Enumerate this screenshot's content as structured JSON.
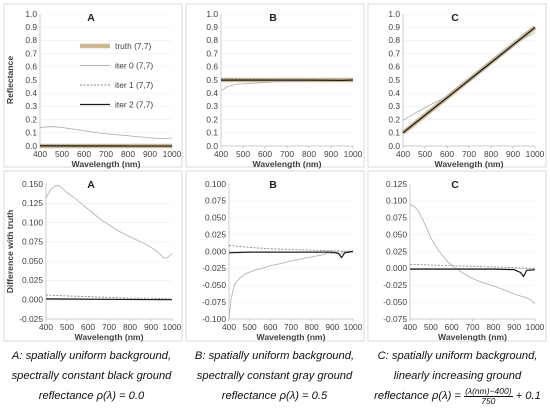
{
  "chart_data": [
    {
      "type": "line",
      "panel": "A",
      "title": "A",
      "xlabel": "Wavelength (nm)",
      "ylabel": "Reflectance",
      "xlim": [
        400,
        1000
      ],
      "ylim": [
        0,
        1
      ],
      "xticks": [
        "400",
        "500",
        "600",
        "700",
        "800",
        "900",
        "1000"
      ],
      "yticks": [
        "0.0",
        "0.1",
        "0.2",
        "0.3",
        "0.4",
        "0.5",
        "0.6",
        "0.7",
        "0.8",
        "0.9",
        "1.0"
      ],
      "legend": {
        "position": "right",
        "entries": [
          "truth (7,7)",
          "iter 0 (7,7)",
          "iter 1 (7,7)",
          "iter 2 (7,7)"
        ]
      },
      "series": [
        {
          "name": "truth (7,7)",
          "x": [
            400,
            1000
          ],
          "y": [
            0.0,
            0.0
          ]
        },
        {
          "name": "iter 0 (7,7)",
          "x": [
            400,
            450,
            500,
            550,
            600,
            650,
            700,
            750,
            800,
            850,
            900,
            950,
            1000
          ],
          "y": [
            0.14,
            0.148,
            0.14,
            0.128,
            0.115,
            0.103,
            0.093,
            0.085,
            0.078,
            0.07,
            0.062,
            0.056,
            0.06
          ]
        },
        {
          "name": "iter 1 (7,7)",
          "x": [
            400,
            500,
            600,
            700,
            800,
            900,
            1000
          ],
          "y": [
            0.006,
            0.005,
            0.004,
            0.003,
            0.002,
            0.002,
            0.001
          ]
        },
        {
          "name": "iter 2 (7,7)",
          "x": [
            400,
            1000
          ],
          "y": [
            0.001,
            0.0
          ]
        }
      ]
    },
    {
      "type": "line",
      "panel": "B",
      "title": "B",
      "xlabel": "Wavelength (nm)",
      "ylabel": "",
      "xlim": [
        400,
        1000
      ],
      "ylim": [
        0,
        1
      ],
      "xticks": [
        "400",
        "500",
        "600",
        "700",
        "800",
        "900",
        "1000"
      ],
      "yticks": [
        "0.0",
        "0.1",
        "0.2",
        "0.3",
        "0.4",
        "0.5",
        "0.6",
        "0.7",
        "0.8",
        "0.9",
        "1.0"
      ],
      "series": [
        {
          "name": "truth (7,7)",
          "x": [
            400,
            1000
          ],
          "y": [
            0.5,
            0.5
          ]
        },
        {
          "name": "iter 0 (7,7)",
          "x": [
            400,
            430,
            470,
            520,
            600,
            700,
            800,
            880,
            920,
            950,
            1000
          ],
          "y": [
            0.42,
            0.45,
            0.468,
            0.473,
            0.482,
            0.49,
            0.497,
            0.5,
            0.498,
            0.5,
            0.501
          ]
        },
        {
          "name": "iter 1 (7,7)",
          "x": [
            400,
            600,
            800,
            950,
            1000
          ],
          "y": [
            0.51,
            0.503,
            0.502,
            0.5,
            0.5
          ]
        },
        {
          "name": "iter 2 (7,7)",
          "x": [
            400,
            600,
            800,
            950,
            1000
          ],
          "y": [
            0.499,
            0.499,
            0.499,
            0.497,
            0.5
          ]
        }
      ]
    },
    {
      "type": "line",
      "panel": "C",
      "title": "C",
      "xlabel": "Wavelength (nm)",
      "ylabel": "",
      "xlim": [
        400,
        1000
      ],
      "ylim": [
        0,
        1
      ],
      "xticks": [
        "400",
        "500",
        "600",
        "700",
        "800",
        "900",
        "1000"
      ],
      "yticks": [
        "0.0",
        "0.1",
        "0.2",
        "0.3",
        "0.4",
        "0.5",
        "0.6",
        "0.7",
        "0.8",
        "0.9",
        "1.0"
      ],
      "series": [
        {
          "name": "truth (7,7)",
          "x": [
            400,
            1000
          ],
          "y": [
            0.1,
            0.9
          ]
        },
        {
          "name": "iter 0 (7,7)",
          "x": [
            400,
            450,
            500,
            550,
            600,
            700,
            800,
            900,
            950,
            1000
          ],
          "y": [
            0.195,
            0.245,
            0.29,
            0.335,
            0.37,
            0.49,
            0.62,
            0.755,
            0.815,
            0.86
          ]
        },
        {
          "name": "iter 1 (7,7)",
          "x": [
            400,
            600,
            800,
            1000
          ],
          "y": [
            0.105,
            0.37,
            0.635,
            0.9
          ]
        },
        {
          "name": "iter 2 (7,7)",
          "x": [
            400,
            600,
            800,
            1000
          ],
          "y": [
            0.1,
            0.365,
            0.632,
            0.898
          ]
        }
      ]
    },
    {
      "type": "line",
      "panel": "A",
      "title": "A",
      "xlabel": "Wavelength (nm)",
      "ylabel": "Difference with truth",
      "xlim": [
        400,
        1000
      ],
      "ylim": [
        -0.025,
        0.15
      ],
      "xticks": [
        "400",
        "500",
        "600",
        "700",
        "800",
        "900",
        "1000"
      ],
      "yticks": [
        "-0.025",
        "0.000",
        "0.025",
        "0.050",
        "0.075",
        "0.100",
        "0.125",
        "0.150"
      ],
      "series": [
        {
          "name": "iter 0 (7,7)",
          "x": [
            400,
            420,
            440,
            460,
            480,
            500,
            540,
            580,
            620,
            660,
            700,
            740,
            780,
            820,
            860,
            900,
            940,
            960,
            980,
            1000
          ],
          "y": [
            0.132,
            0.142,
            0.147,
            0.148,
            0.144,
            0.139,
            0.131,
            0.122,
            0.113,
            0.104,
            0.097,
            0.09,
            0.084,
            0.079,
            0.074,
            0.068,
            0.06,
            0.054,
            0.055,
            0.06
          ]
        },
        {
          "name": "iter 1 (7,7)",
          "x": [
            400,
            500,
            600,
            700,
            800,
            900,
            1000
          ],
          "y": [
            0.006,
            0.005,
            0.004,
            0.003,
            0.002,
            0.002,
            0.001
          ]
        },
        {
          "name": "iter 2 (7,7)",
          "x": [
            400,
            1000
          ],
          "y": [
            0.001,
            0.0
          ]
        }
      ]
    },
    {
      "type": "line",
      "panel": "B",
      "title": "B",
      "xlabel": "Wavelength (nm)",
      "ylabel": "",
      "xlim": [
        400,
        1000
      ],
      "ylim": [
        -0.1,
        0.1
      ],
      "xticks": [
        "400",
        "500",
        "600",
        "700",
        "800",
        "900",
        "1000"
      ],
      "yticks": [
        "-0.100",
        "-0.075",
        "-0.050",
        "-0.025",
        "0.000",
        "0.025",
        "0.050",
        "0.075",
        "0.100"
      ],
      "series": [
        {
          "name": "iter 0 (7,7)",
          "x": [
            400,
            410,
            425,
            450,
            480,
            520,
            560,
            600,
            650,
            700,
            750,
            800,
            850,
            880,
            900,
            920,
            940,
            960,
            1000
          ],
          "y": [
            -0.1,
            -0.07,
            -0.05,
            -0.04,
            -0.033,
            -0.028,
            -0.025,
            -0.021,
            -0.018,
            -0.014,
            -0.011,
            -0.008,
            -0.005,
            -0.002,
            -0.003,
            -0.001,
            -0.004,
            0.0,
            0.001
          ]
        },
        {
          "name": "iter 1 (7,7)",
          "x": [
            400,
            500,
            600,
            700,
            800,
            900,
            1000
          ],
          "y": [
            0.009,
            0.006,
            0.004,
            0.003,
            0.002,
            0.001,
            0.0
          ]
        },
        {
          "name": "iter 2 (7,7)",
          "x": [
            400,
            500,
            700,
            900,
            930,
            945,
            960,
            1000
          ],
          "y": [
            -0.002,
            -0.001,
            -0.001,
            -0.001,
            -0.003,
            -0.009,
            -0.002,
            0.0
          ]
        }
      ]
    },
    {
      "type": "line",
      "panel": "C",
      "title": "C",
      "xlabel": "Wavelength (nm)",
      "ylabel": "",
      "xlim": [
        400,
        1000
      ],
      "ylim": [
        -0.075,
        0.125
      ],
      "xticks": [
        "400",
        "500",
        "600",
        "700",
        "800",
        "900",
        "1000"
      ],
      "yticks": [
        "-0.075",
        "-0.050",
        "-0.025",
        "0.000",
        "0.025",
        "0.050",
        "0.075",
        "0.100",
        "0.125"
      ],
      "series": [
        {
          "name": "iter 0 (7,7)",
          "x": [
            400,
            420,
            440,
            460,
            480,
            500,
            540,
            580,
            620,
            660,
            700,
            740,
            780,
            820,
            860,
            900,
            940,
            970,
            1000
          ],
          "y": [
            0.095,
            0.092,
            0.085,
            0.073,
            0.06,
            0.045,
            0.025,
            0.01,
            0.0,
            -0.008,
            -0.015,
            -0.02,
            -0.024,
            -0.028,
            -0.033,
            -0.038,
            -0.042,
            -0.045,
            -0.052
          ]
        },
        {
          "name": "iter 1 (7,7)",
          "x": [
            400,
            500,
            600,
            700,
            800,
            900,
            1000
          ],
          "y": [
            0.006,
            0.005,
            0.004,
            0.003,
            0.002,
            0.001,
            0.0
          ]
        },
        {
          "name": "iter 2 (7,7)",
          "x": [
            400,
            600,
            800,
            900,
            930,
            945,
            960,
            1000
          ],
          "y": [
            -0.001,
            -0.001,
            -0.001,
            -0.002,
            -0.006,
            -0.012,
            -0.003,
            -0.002
          ]
        }
      ]
    }
  ],
  "captions": [
    {
      "line1": "A: spatially uniform background,",
      "line2": "spectrally constant black ground",
      "line3": "reflectance ρ(λ) = 0.0"
    },
    {
      "line1": "B: spatially uniform background,",
      "line2": "spectrally constant gray ground",
      "line3": "reflectance ρ(λ) = 0.5"
    },
    {
      "line1": "C: spatially uniform background,",
      "line2": "linearly increasing ground",
      "line3_pre": "reflectance ρ(λ) = ",
      "frac_num": "(λ(nm)−400)",
      "frac_den": "750",
      "line3_post": " + 0.1"
    }
  ],
  "colors": {
    "truth": "#cdb891",
    "iter0": "#b5b5b5",
    "iter1": "#8a8a8a",
    "iter2": "#1a1a1a",
    "frame": "#d9d9d9",
    "axis": "#bfbfbf",
    "text": "#404040"
  }
}
